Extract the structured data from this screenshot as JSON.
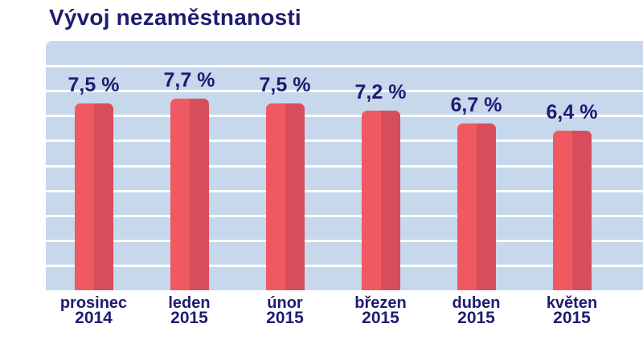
{
  "title": "Vývoj nezaměstnanosti",
  "colors": {
    "page_background": "#FFFFFF",
    "plot_background": "#C7D7EC",
    "gridline": "#FFFFFF",
    "bar_main": "#EF5A62",
    "bar_shade": "#D64E5B",
    "text": "#1F1B70"
  },
  "chart_data": {
    "type": "bar",
    "title": "Vývoj nezaměstnanosti",
    "categories": [
      "prosinec 2014",
      "leden 2015",
      "únor 2015",
      "březen 2015",
      "duben 2015",
      "květen 2015"
    ],
    "category_lines": [
      [
        "prosinec",
        "2014"
      ],
      [
        "leden",
        "2015"
      ],
      [
        "únor",
        "2015"
      ],
      [
        "březen",
        "2015"
      ],
      [
        "duben",
        "2015"
      ],
      [
        "květen",
        "2015"
      ]
    ],
    "values": [
      7.5,
      7.7,
      7.5,
      7.2,
      6.7,
      6.4
    ],
    "value_labels": [
      "7,5 %",
      "7,7 %",
      "7,5 %",
      "7,2 %",
      "6,7 %",
      "6,4 %"
    ],
    "unit": "%",
    "xlabel": "",
    "ylabel": "",
    "ylim": [
      0,
      10
    ],
    "grid_step": 1,
    "grid": true,
    "legend": false,
    "y_tick_labels_visible": false
  }
}
